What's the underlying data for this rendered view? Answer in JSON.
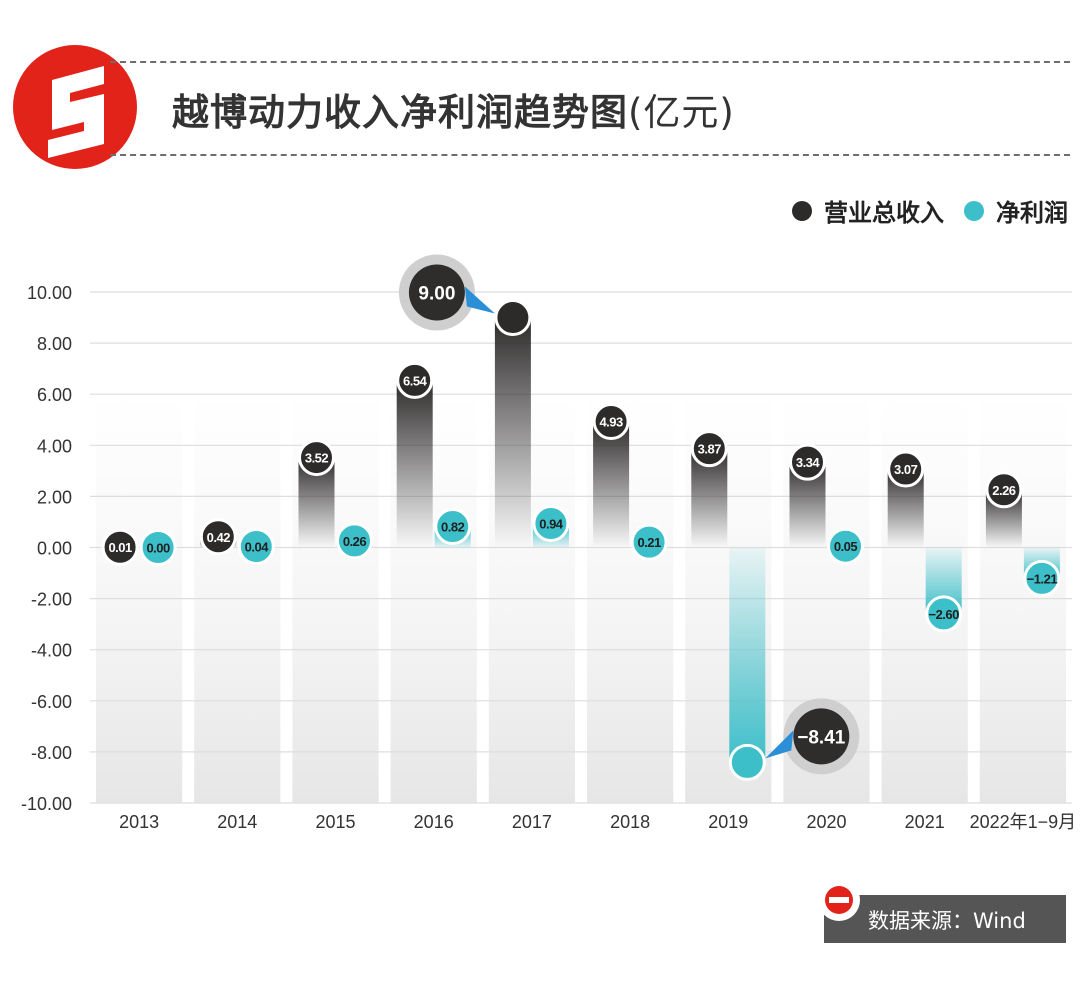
{
  "header": {
    "title": "越博动力收入净利润趋势图",
    "unit": "(亿元)"
  },
  "legend": [
    {
      "label": "营业总收入",
      "color": "#2d2a2a"
    },
    {
      "label": "净利润",
      "color": "#3dbfc9"
    }
  ],
  "source": {
    "text": "数据来源：Wind"
  },
  "chart_data": {
    "type": "bar",
    "categories": [
      "2013",
      "2014",
      "2015",
      "2016",
      "2017",
      "2018",
      "2019",
      "2020",
      "2021",
      "2022年1−9月"
    ],
    "series": [
      {
        "name": "营业总收入",
        "values": [
          0.01,
          0.42,
          3.52,
          6.54,
          9.0,
          4.93,
          3.87,
          3.34,
          3.07,
          2.26
        ],
        "labels": [
          "0.01",
          "0.42",
          "3.52",
          "6.54",
          "9.00",
          "4.93",
          "3.87",
          "3.34",
          "3.07",
          "2.26"
        ]
      },
      {
        "name": "净利润",
        "values": [
          0.0,
          0.04,
          0.26,
          0.82,
          0.94,
          0.21,
          -8.41,
          0.05,
          -2.6,
          -1.21
        ],
        "labels": [
          "0.00",
          "0.04",
          "0.26",
          "0.82",
          "0.94",
          "0.21",
          "−8.41",
          "0.05",
          "−2.60",
          "−1.21"
        ]
      }
    ],
    "yticks": [
      "10.00",
      "8.00",
      "6.00",
      "4.00",
      "2.00",
      "0.00",
      "-2.00",
      "-4.00",
      "-6.00",
      "-8.00",
      "-10.00"
    ],
    "ylim": [
      -10,
      10
    ],
    "grid": true,
    "legend_position": "top-right",
    "highlights": [
      {
        "series": "营业总收入",
        "category": "2017",
        "label": "9.00"
      },
      {
        "series": "净利润",
        "category": "2019",
        "label": "−8.41"
      }
    ],
    "colors": {
      "revenue": "#2d2a2a",
      "profit": "#3dbfc9"
    }
  }
}
